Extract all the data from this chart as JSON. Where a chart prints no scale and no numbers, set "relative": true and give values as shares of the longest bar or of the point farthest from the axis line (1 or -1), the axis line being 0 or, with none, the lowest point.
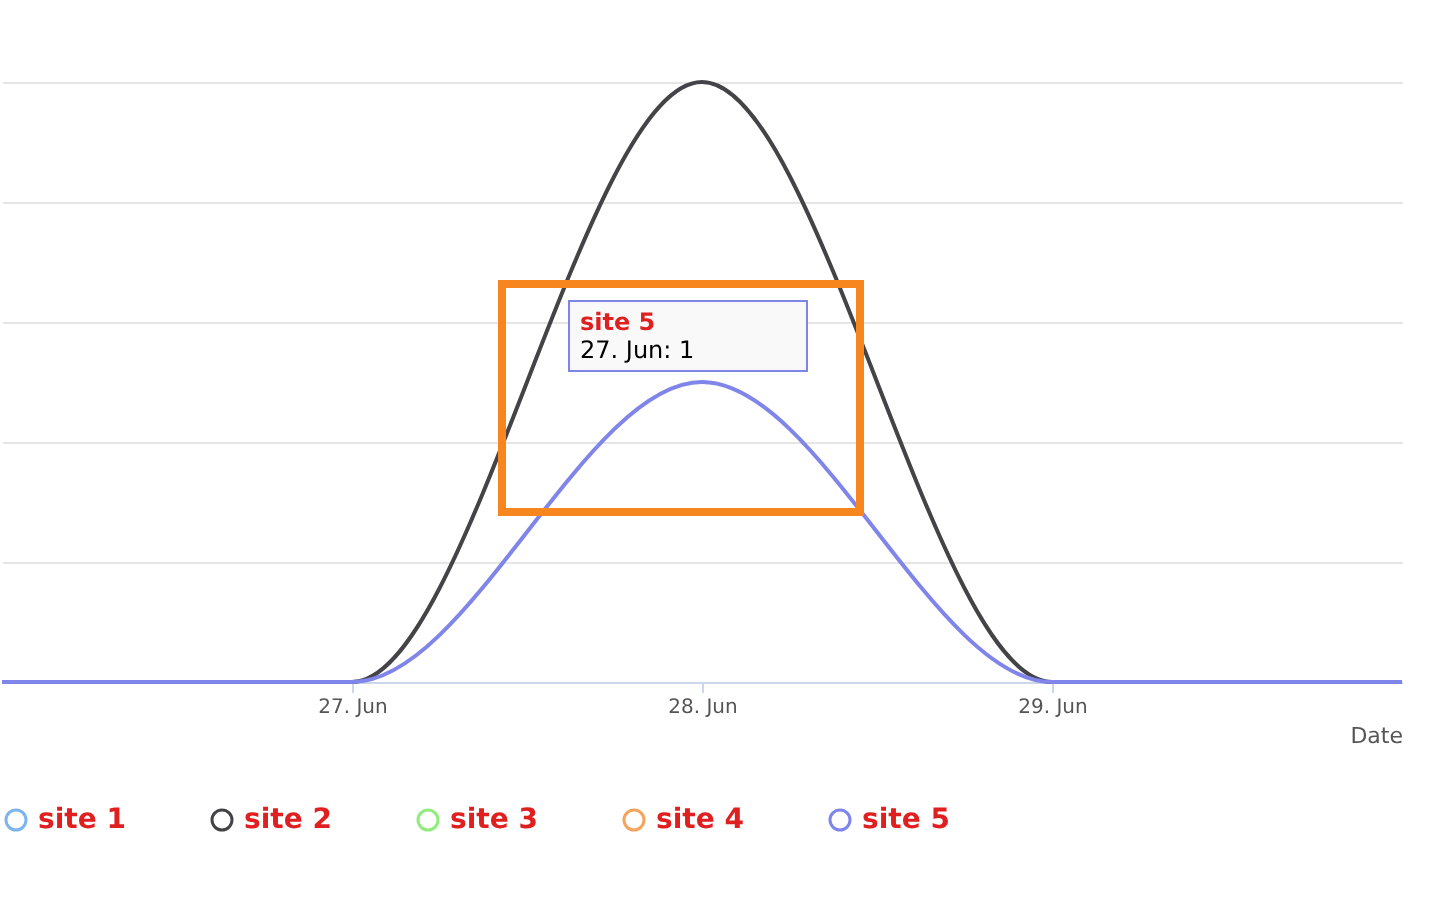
{
  "chart_data": {
    "type": "line",
    "relative": true,
    "xlabel": "Date",
    "x": [
      "--06-26",
      "--06-27",
      "--06-28",
      "--06-29",
      "--06-30"
    ],
    "xlim": [
      "--06-26",
      "--06-30"
    ],
    "xticks": [
      {
        "value": "--06-27",
        "label": "27. Jun"
      },
      {
        "value": "--06-28",
        "label": "28. Jun"
      },
      {
        "value": "--06-29",
        "label": "29. Jun"
      }
    ],
    "series": [
      {
        "name": "site 1",
        "color": "#7cb5ec",
        "values": [
          null,
          null,
          null,
          null,
          null
        ]
      },
      {
        "name": "site 2",
        "color": "#434348",
        "values": [
          0,
          0,
          1,
          0,
          0
        ]
      },
      {
        "name": "site 3",
        "color": "#90ed7d",
        "values": [
          null,
          null,
          null,
          null,
          null
        ]
      },
      {
        "name": "site 4",
        "color": "#f7a35c",
        "values": [
          null,
          null,
          null,
          null,
          null
        ]
      },
      {
        "name": "site 5",
        "color": "#8085e9",
        "values": [
          0,
          0,
          0.5,
          0,
          0
        ]
      }
    ],
    "grid": "y",
    "legend": "bottom",
    "annotations": [
      "site 5",
      "27. Jun: 1"
    ]
  }
}
